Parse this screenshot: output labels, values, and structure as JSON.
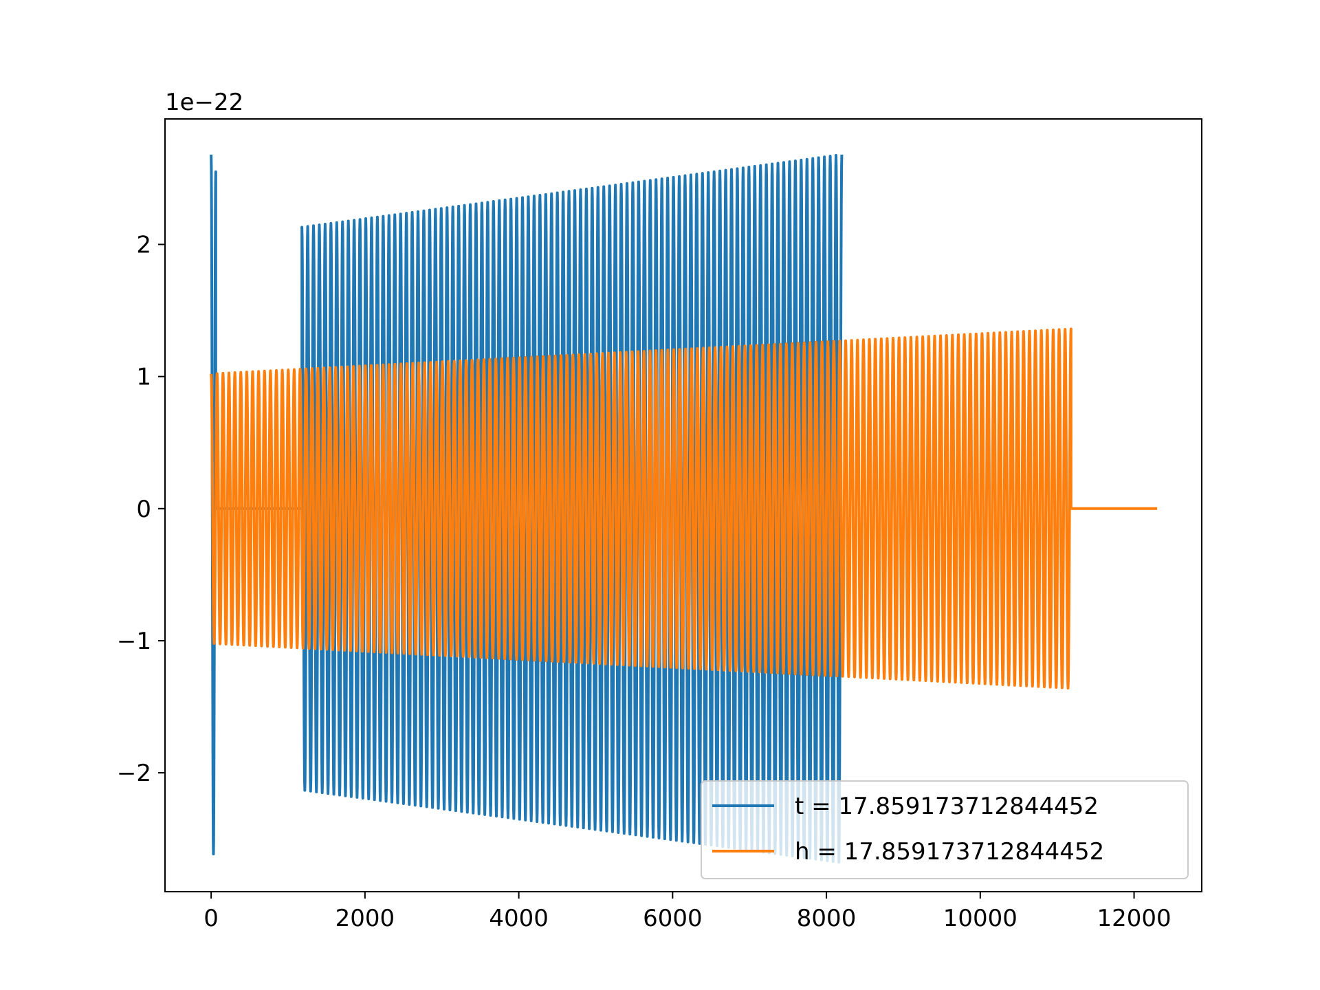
{
  "chart_data": {
    "type": "line",
    "title": "",
    "xlabel": "",
    "ylabel": "",
    "y_offset_label": "1e−22",
    "xlim": [
      -600,
      12880
    ],
    "ylim": [
      -2.9,
      2.95
    ],
    "x_ticks": [
      0,
      2000,
      4000,
      6000,
      8000,
      10000,
      12000
    ],
    "x_tick_labels": [
      "0",
      "2000",
      "4000",
      "6000",
      "8000",
      "10000",
      "12000"
    ],
    "y_ticks": [
      -2,
      -1,
      0,
      1,
      2
    ],
    "y_tick_labels": [
      "−2",
      "−1",
      "0",
      "1",
      "2"
    ],
    "grid": false,
    "legend_position": "lower-right",
    "series": [
      {
        "name": "t = 17.859173712844452",
        "color": "#1f77b4",
        "segments": [
          {
            "start": 0,
            "end": 60,
            "cycles": 1,
            "amp_start": 2.68,
            "amp_end": 2.55
          },
          {
            "start": 60,
            "end": 1180,
            "cycles": 0,
            "amp_start": 0,
            "amp_end": 0
          },
          {
            "start": 1180,
            "end": 8200,
            "cycles": 93,
            "amp_start": 2.13,
            "amp_end": 2.68
          }
        ]
      },
      {
        "name": "h = 17.859173712844452",
        "color": "#ff7f0e",
        "segments": [
          {
            "start": 0,
            "end": 11180,
            "cycles": 145,
            "amp_start": 1.02,
            "amp_end": 1.36
          },
          {
            "start": 11180,
            "end": 12300,
            "cycles": 0,
            "amp_start": 0,
            "amp_end": 0
          }
        ]
      }
    ]
  }
}
